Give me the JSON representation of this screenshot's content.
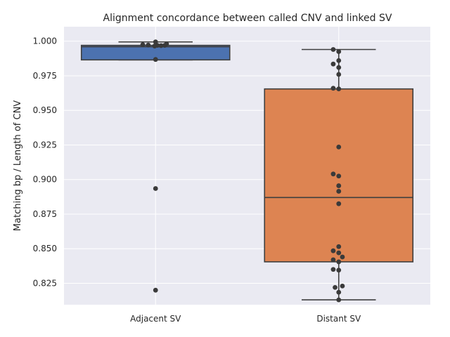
{
  "chart_data": {
    "type": "box",
    "title": "Alignment concordance between called CNV and linked SV",
    "xlabel": "",
    "ylabel": "Matching bp / Length of CNV",
    "ylim": [
      0.8095,
      1.0105
    ],
    "yticks": [
      0.825,
      0.85,
      0.875,
      0.9,
      0.925,
      0.95,
      0.975,
      1.0
    ],
    "ytick_labels": [
      "0.825",
      "0.850",
      "0.875",
      "0.900",
      "0.925",
      "0.950",
      "0.975",
      "1.000"
    ],
    "grid": true,
    "categories": [
      "Adjacent SV",
      "Distant SV"
    ],
    "series": [
      {
        "category": "Adjacent SV",
        "color": "#4c72b0",
        "box": {
          "q1": 0.9865,
          "median": 0.996,
          "q3": 0.997,
          "whisker_low": 0.9865,
          "whisker_high": 0.9995
        },
        "points": [
          0.9995,
          0.998,
          0.9975,
          0.9972,
          0.997,
          0.9965,
          0.9968,
          0.997,
          0.9868,
          0.8935,
          0.82
        ],
        "jitter": [
          0,
          0.12,
          -0.14,
          -0.08,
          0.02,
          -0.01,
          0.06,
          0.1,
          0,
          0,
          0
        ]
      },
      {
        "category": "Distant SV",
        "color": "#dd8452",
        "box": {
          "q1": 0.8405,
          "median": 0.887,
          "q3": 0.9655,
          "whisker_low": 0.813,
          "whisker_high": 0.994
        },
        "points": [
          0.994,
          0.9925,
          0.986,
          0.9835,
          0.981,
          0.976,
          0.966,
          0.9655,
          0.9235,
          0.904,
          0.9025,
          0.8955,
          0.8915,
          0.8825,
          0.8515,
          0.8485,
          0.847,
          0.844,
          0.842,
          0.8405,
          0.835,
          0.8345,
          0.823,
          0.822,
          0.8185,
          0.813
        ],
        "jitter": [
          -0.06,
          0,
          0,
          -0.06,
          0,
          0,
          -0.06,
          0,
          0,
          -0.06,
          0,
          0,
          0,
          0,
          0,
          -0.06,
          0,
          0.04,
          -0.06,
          0,
          -0.06,
          0,
          0.04,
          -0.04,
          0,
          0
        ]
      }
    ]
  }
}
